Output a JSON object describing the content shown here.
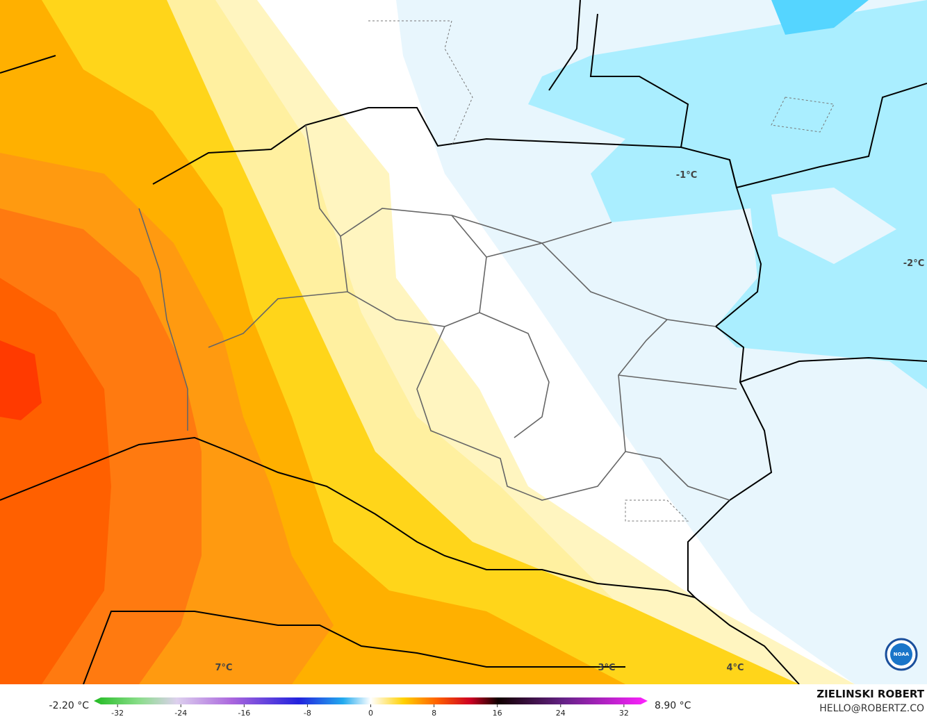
{
  "map": {
    "contour_labels": [
      "7°C",
      "3°C",
      "4°C",
      "-1°C",
      "-2°C"
    ],
    "min_label": "-2.20 °C",
    "max_label": "8.90 °C",
    "colorbar": {
      "lim": [
        -35,
        35
      ],
      "ticks": [
        -32,
        -24,
        -16,
        -8,
        0,
        8,
        16,
        24,
        32
      ]
    },
    "credit": {
      "author": "ZIELINSKI ROBERT",
      "contact": "HELLO@ROBERTZ.CO"
    },
    "logo": "NOAA"
  }
}
